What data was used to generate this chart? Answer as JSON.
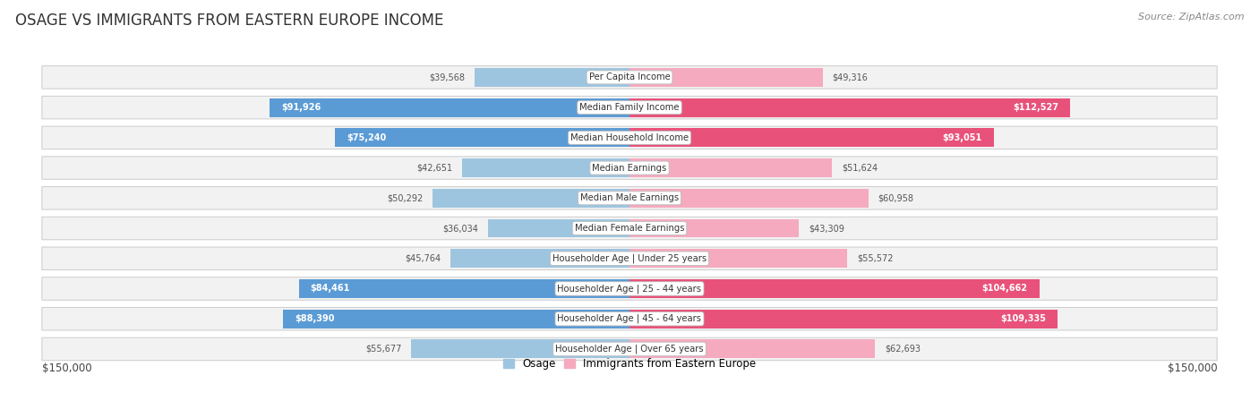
{
  "title": "OSAGE VS IMMIGRANTS FROM EASTERN EUROPE INCOME",
  "source": "Source: ZipAtlas.com",
  "categories": [
    "Per Capita Income",
    "Median Family Income",
    "Median Household Income",
    "Median Earnings",
    "Median Male Earnings",
    "Median Female Earnings",
    "Householder Age | Under 25 years",
    "Householder Age | 25 - 44 years",
    "Householder Age | 45 - 64 years",
    "Householder Age | Over 65 years"
  ],
  "osage_values": [
    39568,
    91926,
    75240,
    42651,
    50292,
    36034,
    45764,
    84461,
    88390,
    55677
  ],
  "eastern_europe_values": [
    49316,
    112527,
    93051,
    51624,
    60958,
    43309,
    55572,
    104662,
    109335,
    62693
  ],
  "osage_labels": [
    "$39,568",
    "$91,926",
    "$75,240",
    "$42,651",
    "$50,292",
    "$36,034",
    "$45,764",
    "$84,461",
    "$88,390",
    "$55,677"
  ],
  "eastern_europe_labels": [
    "$49,316",
    "$112,527",
    "$93,051",
    "$51,624",
    "$60,958",
    "$43,309",
    "$55,572",
    "$104,662",
    "$109,335",
    "$62,693"
  ],
  "osage_color_normal": "#9EC5E0",
  "osage_color_highlight": "#5B9BD5",
  "eastern_europe_color_normal": "#F5AABF",
  "eastern_europe_color_highlight": "#E8527A",
  "max_value": 150000,
  "axis_label_left": "$150,000",
  "axis_label_right": "$150,000",
  "bar_height": 0.62,
  "row_bg_color": "#F2F2F2",
  "row_border_color": "#CCCCCC",
  "background_color": "#FFFFFF",
  "osage_highlight_rows": [
    1,
    2,
    7,
    8
  ],
  "eastern_europe_highlight_rows": [
    1,
    2,
    7,
    8
  ],
  "legend_osage": "Osage",
  "legend_ee": "Immigrants from Eastern Europe",
  "title_fontsize": 12,
  "label_fontsize": 7.5,
  "value_fontsize": 7.0,
  "cat_label_fontsize": 7.2
}
